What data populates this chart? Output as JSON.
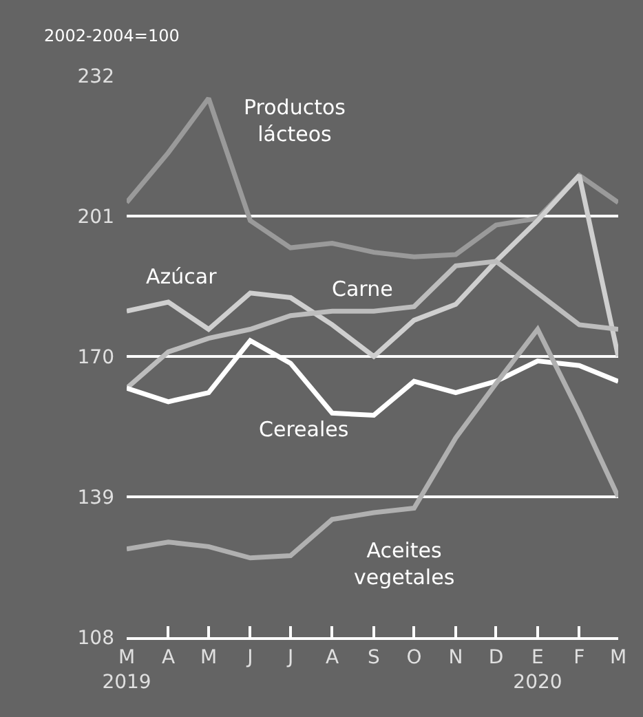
{
  "chart_data": {
    "type": "line",
    "ylabel": "2002-2004=100",
    "x": [
      "2019-03",
      "2019-04",
      "2019-05",
      "2019-06",
      "2019-07",
      "2019-08",
      "2019-09",
      "2019-10",
      "2019-11",
      "2019-12",
      "2020-01",
      "2020-02",
      "2020-03"
    ],
    "series": [
      {
        "name": "Productos lácteos",
        "color": "#9a9a9a",
        "values": [
          204,
          215,
          227,
          200,
          194,
          195,
          193,
          192,
          192.5,
          199,
          200.5,
          210,
          204
        ]
      },
      {
        "name": "Azúcar",
        "color": "#cfcfcf",
        "values": [
          180,
          182,
          176,
          184,
          183,
          177,
          170,
          178,
          181.5,
          191,
          200,
          210,
          170
        ]
      },
      {
        "name": "Carne",
        "color": "#bdbdbd",
        "values": [
          163,
          171,
          174,
          176,
          179,
          180,
          180,
          181,
          190,
          191,
          184,
          177,
          176
        ]
      },
      {
        "name": "Cereales",
        "color": "#ffffff",
        "values": [
          163,
          160,
          162,
          173.5,
          168.5,
          157.5,
          157,
          164.5,
          162,
          164.5,
          169,
          168,
          164.5
        ]
      },
      {
        "name": "Aceites vegetales",
        "color": "#b0b0b0",
        "values": [
          127.5,
          129,
          128,
          125.5,
          126,
          134,
          135.5,
          136.5,
          152,
          164,
          176,
          157.5,
          139
        ]
      }
    ],
    "xlim": [
      "2019-03-01",
      "2020-03-01"
    ],
    "xticks": [
      {
        "value": "2019-03",
        "label": "M\n2019"
      },
      {
        "value": "2019-04",
        "label": "A"
      },
      {
        "value": "2019-05",
        "label": "M"
      },
      {
        "value": "2019-06",
        "label": "J"
      },
      {
        "value": "2019-07",
        "label": "J"
      },
      {
        "value": "2019-08",
        "label": "A"
      },
      {
        "value": "2019-09",
        "label": "S"
      },
      {
        "value": "2019-10",
        "label": "O"
      },
      {
        "value": "2019-11",
        "label": "N"
      },
      {
        "value": "2019-12",
        "label": "D"
      },
      {
        "value": "2020-01",
        "label": "E\n2020"
      },
      {
        "value": "2020-02",
        "label": "F"
      },
      {
        "value": "2020-03",
        "label": "M"
      }
    ],
    "ylim": [
      108,
      232
    ],
    "yticks": [
      108,
      139,
      170,
      201,
      232
    ],
    "grid": "y",
    "legend": false,
    "marker": "none",
    "line_style": "solid"
  }
}
